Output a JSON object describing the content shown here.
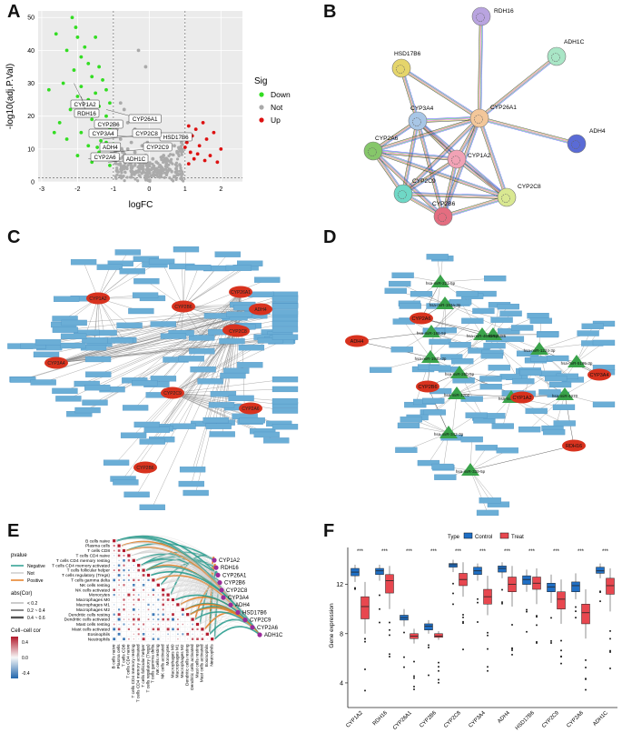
{
  "panels": {
    "a": "A",
    "b": "B",
    "c": "C",
    "d": "D",
    "e": "E",
    "f": "F"
  },
  "volcano": {
    "xlabel": "logFC",
    "ylabel": "-log10(adj.P.Val)",
    "xticks": [
      "-3",
      "-2",
      "-1",
      "0",
      "1",
      "2"
    ],
    "yticks": [
      "0",
      "10",
      "20",
      "30",
      "40",
      "50"
    ],
    "legend_title": "Sig",
    "legend": [
      {
        "label": "Down",
        "color": "#33dd22"
      },
      {
        "label": "Not",
        "color": "#aaaaaa"
      },
      {
        "label": "Up",
        "color": "#dd1111"
      }
    ],
    "labels": [
      "CYP1A2",
      "RDH16",
      "CYP26A1",
      "CYP2B6",
      "HSD17B6",
      "CYP3A4",
      "CYP2C8",
      "ADH4",
      "CYP2C9",
      "CYP2A6",
      "ADH1C"
    ]
  },
  "ppi": {
    "nodes": [
      "RDH16",
      "HSD17B6",
      "ADH1C",
      "CYP3A4",
      "CYP26A1",
      "ADH4",
      "CYP2A6",
      "CYP1A2",
      "CYP2C9",
      "CYP2C8",
      "CYP2B6"
    ]
  },
  "drug_network": {
    "hubs": [
      "CYP1A2",
      "CYP2B6",
      "ADH4",
      "CYP26A1",
      "CYP2C9",
      "ADH1C",
      "CYP3A4",
      "CYP2A6",
      "CYP2B6",
      "CYP2C8"
    ]
  },
  "mirna_network": {
    "genes": [
      "ADH4",
      "CYP2A6",
      "CYP1A2",
      "CYP2B6",
      "CYP3A4",
      "RDH16"
    ],
    "mirnas": [
      "hsa-miR-221-5p",
      "hsa-miR-193a-3p",
      "hsa-miR-8485",
      "hsa-miR-186-5p",
      "hsa-miR-4640-5p",
      "hsa-miR-193b-3p",
      "hsa-miR-26b-5p",
      "hsa-miR-1202",
      "hsa-miR-4640",
      "hsa-miR-1224-3p",
      "hsa-miR-5195-3p",
      "hsa-miR-4270",
      "hsa-miR-342-3p",
      "hsa-miR-339-5p"
    ]
  },
  "immune": {
    "legend_pvalue_title": "pvalue",
    "legend_pvalue": [
      "Negative",
      "Not",
      "Positive"
    ],
    "legend_abs_title": "abs(Cor)",
    "legend_abs": [
      "< 0.2",
      "0.2 ~ 0.4",
      "0.4 ~ 0.6"
    ],
    "legend_cell_title": "Cell−cell cor",
    "legend_cell_ticks": [
      "0.4",
      "0.0",
      "-0.4"
    ],
    "cells": [
      "B cells naive",
      "Plasma cells",
      "T cells CD8",
      "T cells CD4 naive",
      "T cells CD4 memory resting",
      "T cells CD4 memory activated",
      "T cells follicular helper",
      "T cells regulatory (Tregs)",
      "T cells gamma delta",
      "NK cells resting",
      "NK cells activated",
      "Monocytes",
      "Macrophages M0",
      "Macrophages M1",
      "Macrophages M2",
      "Dendritic cells resting",
      "Dendritic cells activated",
      "Mast cells resting",
      "Mast cells activated",
      "Eosinophils",
      "Neutrophils"
    ],
    "genes": [
      "CYP1A2",
      "RDH16",
      "CYP26A1",
      "CYP2B6",
      "CYP2C8",
      "CYP3A4",
      "ADH4",
      "HSD17B6",
      "CYP2C9",
      "CYP2A6",
      "ADH1C"
    ]
  },
  "chart_data": [
    {
      "type": "scatter",
      "title": "",
      "xlabel": "logFC",
      "ylabel": "-log10(adj.P.Val)",
      "xlim": [
        -3.1,
        2.6
      ],
      "ylim": [
        0,
        52
      ],
      "series": [
        {
          "name": "Down",
          "points": [
            [
              -2.15,
              50
            ],
            [
              -2.05,
              47
            ],
            [
              -2.6,
              45
            ],
            [
              -2.0,
              44
            ],
            [
              -1.8,
              41
            ],
            [
              -1.5,
              44
            ],
            [
              -2.3,
              40
            ],
            [
              -1.9,
              38
            ],
            [
              -1.7,
              36
            ],
            [
              -1.4,
              35
            ],
            [
              -2.1,
              34
            ],
            [
              -1.6,
              32
            ],
            [
              -1.3,
              31
            ],
            [
              -2.4,
              30
            ],
            [
              -1.9,
              29
            ],
            [
              -1.2,
              28
            ],
            [
              -1.5,
              27
            ],
            [
              -2.0,
              26
            ],
            [
              -1.7,
              25
            ],
            [
              -1.1,
              24
            ],
            [
              -1.4,
              23
            ],
            [
              -2.2,
              22
            ],
            [
              -1.8,
              21
            ],
            [
              -1.2,
              20
            ],
            [
              -1.6,
              19
            ],
            [
              -2.5,
              18
            ],
            [
              -1.3,
              17
            ],
            [
              -1.1,
              16
            ],
            [
              -1.9,
              15
            ],
            [
              -1.5,
              14
            ],
            [
              -2.3,
              13
            ],
            [
              -1.2,
              12
            ],
            [
              -1.7,
              11
            ],
            [
              -1.05,
              10
            ],
            [
              -1.4,
              9
            ],
            [
              -2.0,
              8
            ],
            [
              -1.15,
              7
            ],
            [
              -1.6,
              6
            ],
            [
              -1.1,
              5
            ],
            [
              -2.8,
              28
            ],
            [
              -2.65,
              15
            ],
            [
              -1.25,
              14.5
            ],
            [
              -1.35,
              12.5
            ],
            [
              -1.0,
              11.5
            ],
            [
              -1.45,
              10.5
            ]
          ]
        },
        {
          "name": "Not",
          "points": [
            [
              -0.8,
              24
            ],
            [
              -0.7,
              22
            ],
            [
              -0.5,
              20
            ],
            [
              -0.6,
              18
            ],
            [
              -0.4,
              16
            ],
            [
              -0.3,
              14
            ],
            [
              -0.5,
              12
            ],
            [
              -0.2,
              11
            ],
            [
              -0.6,
              10
            ],
            [
              -0.4,
              9
            ],
            [
              -0.1,
              8
            ],
            [
              0.1,
              7
            ],
            [
              -0.3,
              6
            ],
            [
              0.2,
              6
            ],
            [
              0.4,
              8
            ],
            [
              0.5,
              10
            ],
            [
              0.6,
              13
            ],
            [
              0.7,
              11
            ],
            [
              0.3,
              5
            ],
            [
              -0.2,
              4
            ],
            [
              0.0,
              3
            ],
            [
              0.1,
              2
            ],
            [
              -0.1,
              1
            ],
            [
              0.5,
              3
            ],
            [
              0.8,
              9
            ],
            [
              0.9,
              12
            ],
            [
              -0.9,
              16
            ],
            [
              -0.8,
              13
            ],
            [
              -0.95,
              9
            ],
            [
              0.2,
              4
            ],
            [
              -0.5,
              5
            ],
            [
              0.35,
              7.5
            ],
            [
              -0.25,
              7
            ],
            [
              0.6,
              6
            ],
            [
              0.75,
              4
            ],
            [
              -0.7,
              7
            ],
            [
              0.15,
              10
            ],
            [
              -0.05,
              12
            ],
            [
              0.05,
              14
            ],
            [
              -0.3,
              40
            ],
            [
              -0.1,
              35
            ]
          ]
        },
        {
          "name": "Up",
          "points": [
            [
              1.5,
              18
            ],
            [
              1.1,
              17
            ],
            [
              1.3,
              16
            ],
            [
              1.8,
              15
            ],
            [
              1.2,
              14
            ],
            [
              1.6,
              13
            ],
            [
              1.05,
              12
            ],
            [
              1.4,
              11
            ],
            [
              2.0,
              10
            ],
            [
              1.15,
              9
            ],
            [
              1.7,
              8
            ],
            [
              1.25,
              7
            ],
            [
              1.9,
              6
            ],
            [
              1.0,
              10.5
            ],
            [
              1.35,
              8.5
            ],
            [
              1.55,
              6.5
            ],
            [
              1.1,
              5.5
            ]
          ]
        }
      ],
      "labels": [
        "CYP1A2",
        "RDH16",
        "CYP26A1",
        "CYP2B6",
        "HSD17B6",
        "CYP3A4",
        "CYP2C8",
        "ADH4",
        "CYP2C9",
        "CYP2A6",
        "ADH1C"
      ]
    },
    {
      "type": "box",
      "title": "",
      "xlabel": "",
      "ylabel": "Gene expression",
      "ylim": [
        2,
        15
      ],
      "yticks": [
        "4",
        "8",
        "12"
      ],
      "legend_title": "Type",
      "series": [
        {
          "name": "Control",
          "color": "#1f6fc5"
        },
        {
          "name": "Treat",
          "color": "#e8474f"
        }
      ],
      "categories": [
        "CYP1A2",
        "RDH16",
        "CYP26A1",
        "CYP2B6",
        "CYP2C8",
        "CYP3A4",
        "ADH4",
        "HSD17B6",
        "CYP2C9",
        "CYP2A6",
        "ADH1C"
      ],
      "significance": [
        "***",
        "***",
        "***",
        "***",
        "***",
        "***",
        "***",
        "***",
        "***",
        "***",
        "***"
      ],
      "boxes": [
        {
          "control": [
            12.2,
            12.7,
            13.0,
            13.3,
            13.6
          ],
          "treat": [
            8.0,
            9.2,
            10.2,
            11.0,
            12.2
          ]
        },
        {
          "control": [
            12.3,
            12.8,
            13.1,
            13.3,
            13.6
          ],
          "treat": [
            10.0,
            11.3,
            12.3,
            12.8,
            13.5
          ]
        },
        {
          "control": [
            8.6,
            9.1,
            9.3,
            9.5,
            10.0
          ],
          "treat": [
            7.2,
            7.6,
            7.8,
            8.0,
            8.4
          ]
        },
        {
          "control": [
            8.0,
            8.3,
            8.6,
            8.8,
            9.1
          ],
          "treat": [
            7.5,
            7.7,
            7.8,
            8.0,
            8.2
          ]
        },
        {
          "control": [
            13.0,
            13.4,
            13.6,
            13.7,
            14.0
          ],
          "treat": [
            11.0,
            11.9,
            12.4,
            12.9,
            13.8
          ]
        },
        {
          "control": [
            12.3,
            12.8,
            13.1,
            13.4,
            13.7
          ],
          "treat": [
            9.5,
            10.4,
            11.0,
            11.6,
            12.7
          ]
        },
        {
          "control": [
            12.5,
            13.0,
            13.3,
            13.5,
            13.8
          ],
          "treat": [
            10.2,
            11.4,
            12.0,
            12.6,
            13.5
          ]
        },
        {
          "control": [
            11.4,
            12.0,
            12.4,
            12.7,
            13.2
          ],
          "treat": [
            10.4,
            11.6,
            12.1,
            12.6,
            13.3
          ]
        },
        {
          "control": [
            10.5,
            11.4,
            11.8,
            12.1,
            12.8
          ],
          "treat": [
            8.8,
            10.0,
            10.8,
            11.4,
            12.4
          ]
        },
        {
          "control": [
            10.8,
            11.4,
            11.9,
            12.2,
            12.9
          ],
          "treat": [
            7.6,
            8.8,
            9.7,
            10.4,
            11.6
          ]
        },
        {
          "control": [
            12.5,
            12.9,
            13.1,
            13.4,
            13.7
          ],
          "treat": [
            9.8,
            11.2,
            11.9,
            12.5,
            13.3
          ]
        }
      ]
    }
  ]
}
